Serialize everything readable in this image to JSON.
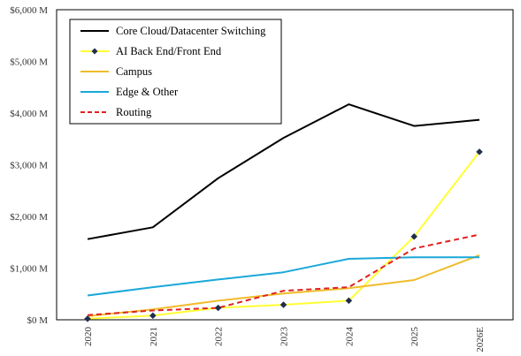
{
  "chart_data": {
    "type": "line",
    "title": "",
    "xlabel": "",
    "ylabel": "",
    "categories": [
      "2020",
      "2021",
      "2022",
      "2023",
      "2024",
      "2025",
      "2026E"
    ],
    "ylim": [
      0,
      6000
    ],
    "yticks": [
      0,
      1000,
      2000,
      3000,
      4000,
      5000,
      6000
    ],
    "ytick_labels": [
      "$0 M",
      "$1,000 M",
      "$2,000 M",
      "$3,000 M",
      "$4,000 M",
      "$5,000 M",
      "$6,000 M"
    ],
    "grid": false,
    "legend_position": "top-left",
    "series": [
      {
        "name": "Core Cloud/Datacenter Switching",
        "color": "#000000",
        "style": "solid",
        "marker": "none",
        "values": [
          1560,
          1790,
          2740,
          3520,
          4170,
          3750,
          3870
        ]
      },
      {
        "name": "AI Back End/Front End",
        "color": "#ffff33",
        "style": "solid",
        "marker": "diamond",
        "marker_color": "#1f2d4d",
        "values": [
          20,
          80,
          230,
          290,
          370,
          1610,
          3250
        ]
      },
      {
        "name": "Campus",
        "color": "#f0bc2a",
        "style": "solid",
        "marker": "none",
        "values": [
          70,
          200,
          370,
          510,
          610,
          770,
          1250
        ]
      },
      {
        "name": "Edge & Other",
        "color": "#1aa8d8",
        "style": "solid",
        "marker": "none",
        "values": [
          470,
          630,
          780,
          920,
          1180,
          1210,
          1210
        ]
      },
      {
        "name": "Routing",
        "color": "#e02020",
        "style": "dashed",
        "marker": "none",
        "values": [
          90,
          180,
          230,
          560,
          630,
          1380,
          1650
        ]
      }
    ]
  }
}
